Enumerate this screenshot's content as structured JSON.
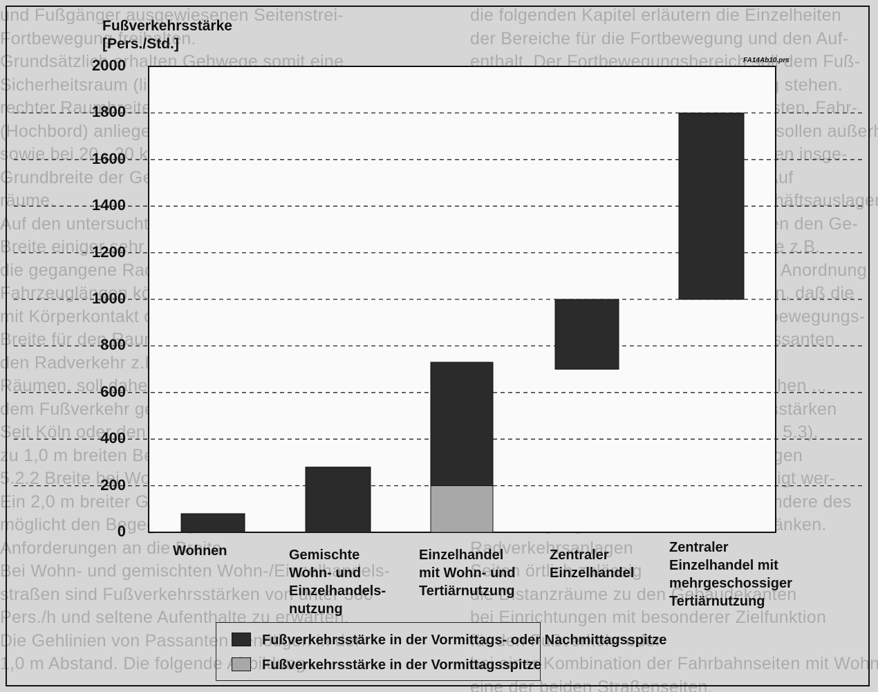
{
  "chart_data": {
    "type": "bar",
    "ylabel": "Fußverkehrsstärke\n[Pers./Std.]",
    "ylabel_lines": [
      "Fußverkehrsstärke",
      "[Pers./Std.]"
    ],
    "file_ref": "FA14Ab10.prs",
    "ylim": [
      0,
      2000
    ],
    "yticks": [
      0,
      200,
      400,
      600,
      800,
      1000,
      1200,
      1400,
      1600,
      1800,
      2000
    ],
    "grid": "horizontal-dashed",
    "categories": [
      "Wohnen",
      "Gemischte\nWohn- und\nEinzelhandels-\nnutzung",
      "Einzelhandel\nmit Wohn- und\nTertiärnutzung",
      "Zentraler\nEinzelhandel",
      "Zentraler\nEinzelhandel mit\nmehrgeschossiger\nTertiärnutzung"
    ],
    "series": [
      {
        "name": "Fußverkehrsstärke in der Vormittags- oder Nachmittagsspitze",
        "color": "#2b2b2b",
        "ranges": [
          [
            0,
            80
          ],
          [
            0,
            280
          ],
          [
            0,
            730
          ],
          [
            700,
            1000
          ],
          [
            1000,
            1800
          ]
        ]
      },
      {
        "name": "Fußverkehrsstärke in der Vormittagsspitze",
        "color": "#a8a8a8",
        "ranges": [
          [
            null,
            null
          ],
          [
            null,
            null
          ],
          [
            0,
            200
          ],
          [
            null,
            null
          ],
          [
            null,
            null
          ]
        ]
      }
    ],
    "legend_position": "bottom"
  },
  "background_text_left": [
    "und Fußgänger ausgewiesenen Seitenstrei-",
    "Fortbewegung freihalten.",
    "Grundsätzlich erhalten Gehwege somit eine",
    "Sicherheitsraum (lichter Raum des Kfz-Verkehrs)",
    "rechter Raumbreite des Fußgängers von 0,75 m",
    "(Hochbord) anliegende Geschwindigkeiten 50 km/h",
    "sowie bei 20 - 30 km/h gemessen. Zusätzlich die",
    "Grundbreite der Gehwege auch diese Sicherheits-",
    "räume.",
    "Auf den untersuchten Fahrwegen beträgt die",
    "Breite einiger sehr Fahrbahnen und Radfahr-",
    "die gegangene Radwegbereiche, Pkw leisten",
    "Fahrzeuglängen können entsprechend dem Kopfteil",
    "mit Körperkontakt der Fußbreite zusammen",
    "Breite für den Raumbedarf der Fußgänger",
    "den Radverkehr z.B. gegenüber Verkehrszeichen",
    "Räumen, soll daher als Sicherheitsräumen auch",
    "dem Fußverkehr gegenüber eingestellt werden.",
    "Seit Köln oder den Joschenstraßen - zu Ende",
    "zu 1,0 m breiten Bereichen.",
    "5.2.2  Breite bei Wohn- und gemischten",
    "Ein 2,0 m breiter Gehweg ermöglicht Nutzung er-",
    "möglicht den Begegnungsverkehr...",
    "Anforderungen an die Breite",
    "Bei Wohn- und gemischten Wohn-/Einzelhandels-",
    "straßen sind Fußverkehrsstärken von unter 300",
    "Pers./h und seltene Aufenthalte zu erwarten.",
    "Die Gehlinien von Passanten benötigen in der",
    "1,0 m Abstand. Die folgende Abbildung ..."
  ],
  "background_text_right": [
    "die folgenden Kapitel erläutern die Einzelheiten",
    "der Bereiche für die Fortbewegung und den Auf-",
    "enthalt. Der Fortbewegungsbereich soll dem Fuß-",
    "verkehr uneingeschränkt zur Verfügung stehen.",
    "Einbauten, wie etwa Leuchten, Briefkästen, Fahr-",
    "radabstellplätze oder Verkehrszeichen sollen außerhalb",
    "davon untergebracht werden. Sie können insge-",
    "samt größere Seitenräume erfordern. Auf",
    "Gehwegen mit einem Bereich für Geschäftsauslagen",
    "benötigen die Fußgänger auch zwischen den Ge-",
    "schäften in diesem Bereich Flächen, die z.B.",
    "Fahrradabstellanlagen aufnehmen. Die Anordnung",
    "der Abstellplätze sollte so gewährleisten, daß die",
    "Laufenden Fahrräder nicht in den Fortbewegungs-",
    "bereich ragen oder Aufenthalte von Passanten",
    "behindern.",
    "Außerflächen, die Gehwege beanspruchen ...",
    "Stellen sollen bei höheren Fußverkehrsstärken",
    "außerhalb dieser Bereiche liegen (Abb. 5.3).",
    "Sondernutzungen, wie Geschäftsauslagen",
    "und Terrassen sollen nur dann genehmigt wer-",
    "den, wenn sie die Grundbreite insbesondere des",
    "Fortbewegungsbereiches nicht einschränken.",
    "Radverkehrsanlagen",
    "Seiten örtlich zulässig",
    "die Distanzräume zu den Gebäudekanten",
    "bei Einrichtungen mit besonderer Zielfunktion",
    "für den Fußverkehr oder",
    "bei einer Kombination der Fahrbahnseiten mit Wohn-",
    "eine der beiden Straßenseiten."
  ]
}
